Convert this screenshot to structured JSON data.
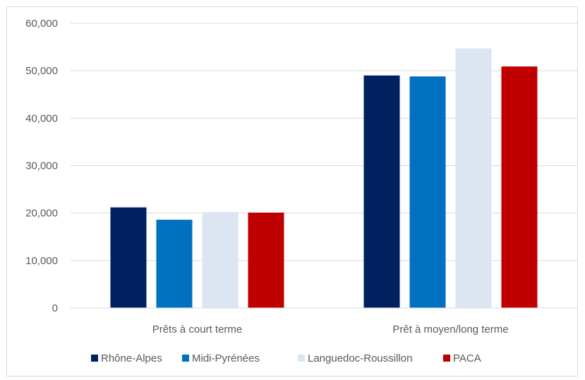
{
  "chart_data": {
    "type": "bar",
    "categories": [
      "Prêts à court terme",
      "Prêt à moyen/long terme"
    ],
    "series": [
      {
        "name": "Rhône-Alpes",
        "color": "#002060",
        "values": [
          21200,
          49000
        ]
      },
      {
        "name": "Midi-Pyrénées",
        "color": "#0070c0",
        "values": [
          18600,
          48800
        ]
      },
      {
        "name": "Languedoc-Roussillon",
        "color": "#dce6f2",
        "values": [
          20200,
          54700
        ]
      },
      {
        "name": "PACA",
        "color": "#c00000",
        "values": [
          20100,
          50900
        ]
      }
    ],
    "ylim": [
      0,
      60000
    ],
    "yticks": [
      0,
      10000,
      20000,
      30000,
      40000,
      50000,
      60000
    ],
    "ytick_labels": [
      "0",
      "10,000",
      "20,000",
      "30,000",
      "40,000",
      "50,000",
      "60,000"
    ],
    "grid": true,
    "legend_position": "bottom",
    "gridline_color": "#d9d9d9"
  }
}
